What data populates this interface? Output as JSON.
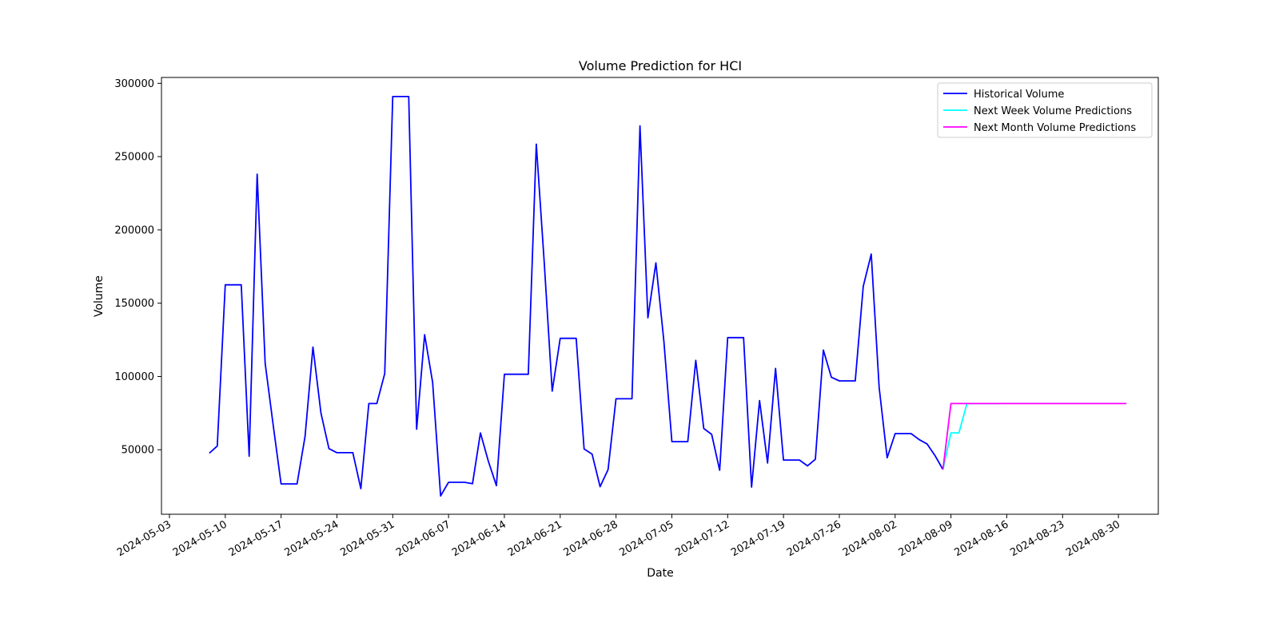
{
  "chart_data": {
    "type": "line",
    "title": "Volume Prediction for HCI",
    "xlabel": "Date",
    "ylabel": "Volume",
    "x_range": [
      "2024-05-02",
      "2024-09-04"
    ],
    "ylim": [
      6000,
      304000
    ],
    "y_ticks": [
      50000,
      100000,
      150000,
      200000,
      250000,
      300000
    ],
    "x_ticks": [
      "2024-05-03",
      "2024-05-10",
      "2024-05-17",
      "2024-05-24",
      "2024-05-31",
      "2024-06-07",
      "2024-06-14",
      "2024-06-21",
      "2024-06-28",
      "2024-07-05",
      "2024-07-12",
      "2024-07-19",
      "2024-07-26",
      "2024-08-02",
      "2024-08-09",
      "2024-08-16",
      "2024-08-23",
      "2024-08-30"
    ],
    "x_tick_rotation": "30deg",
    "grid": false,
    "legend_position": "top-right",
    "series": [
      {
        "name": "Historical Volume",
        "color": "#0000ff",
        "points": [
          [
            "2024-05-08",
            47700
          ],
          [
            "2024-05-09",
            52500
          ],
          [
            "2024-05-10",
            162500
          ],
          [
            "2024-05-11",
            162500
          ],
          [
            "2024-05-12",
            162500
          ],
          [
            "2024-05-13",
            45600
          ],
          [
            "2024-05-14",
            238000
          ],
          [
            "2024-05-15",
            109000
          ],
          [
            "2024-05-16",
            67000
          ],
          [
            "2024-05-17",
            26700
          ],
          [
            "2024-05-18",
            26700
          ],
          [
            "2024-05-19",
            26700
          ],
          [
            "2024-05-20",
            59000
          ],
          [
            "2024-05-21",
            120000
          ],
          [
            "2024-05-22",
            75000
          ],
          [
            "2024-05-23",
            50800
          ],
          [
            "2024-05-24",
            48000
          ],
          [
            "2024-05-25",
            48000
          ],
          [
            "2024-05-26",
            48000
          ],
          [
            "2024-05-27",
            23500
          ],
          [
            "2024-05-28",
            81500
          ],
          [
            "2024-05-29",
            81500
          ],
          [
            "2024-05-30",
            102000
          ],
          [
            "2024-05-31",
            291000
          ],
          [
            "2024-06-01",
            291000
          ],
          [
            "2024-06-02",
            291000
          ],
          [
            "2024-06-03",
            64000
          ],
          [
            "2024-06-04",
            128500
          ],
          [
            "2024-06-05",
            96000
          ],
          [
            "2024-06-06",
            18500
          ],
          [
            "2024-06-07",
            27800
          ],
          [
            "2024-06-08",
            27800
          ],
          [
            "2024-06-09",
            27800
          ],
          [
            "2024-06-10",
            26800
          ],
          [
            "2024-06-11",
            61500
          ],
          [
            "2024-06-12",
            42000
          ],
          [
            "2024-06-13",
            25500
          ],
          [
            "2024-06-14",
            101500
          ],
          [
            "2024-06-15",
            101500
          ],
          [
            "2024-06-16",
            101500
          ],
          [
            "2024-06-17",
            101500
          ],
          [
            "2024-06-18",
            258500
          ],
          [
            "2024-06-19",
            178000
          ],
          [
            "2024-06-20",
            90000
          ],
          [
            "2024-06-21",
            126000
          ],
          [
            "2024-06-22",
            126000
          ],
          [
            "2024-06-23",
            126000
          ],
          [
            "2024-06-24",
            50500
          ],
          [
            "2024-06-25",
            47000
          ],
          [
            "2024-06-26",
            24800
          ],
          [
            "2024-06-27",
            36500
          ],
          [
            "2024-06-28",
            84800
          ],
          [
            "2024-06-29",
            84800
          ],
          [
            "2024-06-30",
            84800
          ],
          [
            "2024-07-01",
            271000
          ],
          [
            "2024-07-02",
            140000
          ],
          [
            "2024-07-03",
            177500
          ],
          [
            "2024-07-04",
            124000
          ],
          [
            "2024-07-05",
            55500
          ],
          [
            "2024-07-06",
            55500
          ],
          [
            "2024-07-07",
            55500
          ],
          [
            "2024-07-08",
            111000
          ],
          [
            "2024-07-09",
            64500
          ],
          [
            "2024-07-10",
            60500
          ],
          [
            "2024-07-11",
            36000
          ],
          [
            "2024-07-12",
            126500
          ],
          [
            "2024-07-13",
            126500
          ],
          [
            "2024-07-14",
            126500
          ],
          [
            "2024-07-15",
            24500
          ],
          [
            "2024-07-16",
            83500
          ],
          [
            "2024-07-17",
            41000
          ],
          [
            "2024-07-18",
            105500
          ],
          [
            "2024-07-19",
            43000
          ],
          [
            "2024-07-20",
            43000
          ],
          [
            "2024-07-21",
            43000
          ],
          [
            "2024-07-22",
            39000
          ],
          [
            "2024-07-23",
            43500
          ],
          [
            "2024-07-24",
            118000
          ],
          [
            "2024-07-25",
            99500
          ],
          [
            "2024-07-26",
            97000
          ],
          [
            "2024-07-27",
            97000
          ],
          [
            "2024-07-28",
            97000
          ],
          [
            "2024-07-29",
            161500
          ],
          [
            "2024-07-30",
            183500
          ],
          [
            "2024-07-31",
            92500
          ],
          [
            "2024-08-01",
            44500
          ],
          [
            "2024-08-02",
            61000
          ],
          [
            "2024-08-03",
            61000
          ],
          [
            "2024-08-04",
            61000
          ],
          [
            "2024-08-05",
            57000
          ],
          [
            "2024-08-06",
            54000
          ],
          [
            "2024-08-07",
            46000
          ],
          [
            "2024-08-08",
            36500
          ]
        ]
      },
      {
        "name": "Next Week Volume Predictions",
        "color": "#00ffff",
        "points": [
          [
            "2024-08-08",
            36500
          ],
          [
            "2024-08-09",
            61500
          ],
          [
            "2024-08-10",
            61500
          ],
          [
            "2024-08-11",
            81500
          ],
          [
            "2024-08-12",
            81500
          ],
          [
            "2024-08-13",
            81500
          ],
          [
            "2024-08-14",
            81500
          ],
          [
            "2024-08-15",
            81500
          ]
        ]
      },
      {
        "name": "Next Month Volume Predictions",
        "color": "#ff00ff",
        "points": [
          [
            "2024-08-08",
            36500
          ],
          [
            "2024-08-09",
            81500
          ],
          [
            "2024-08-10",
            81500
          ],
          [
            "2024-08-15",
            81500
          ],
          [
            "2024-08-20",
            81500
          ],
          [
            "2024-08-25",
            81500
          ],
          [
            "2024-08-31",
            81500
          ]
        ]
      }
    ]
  }
}
